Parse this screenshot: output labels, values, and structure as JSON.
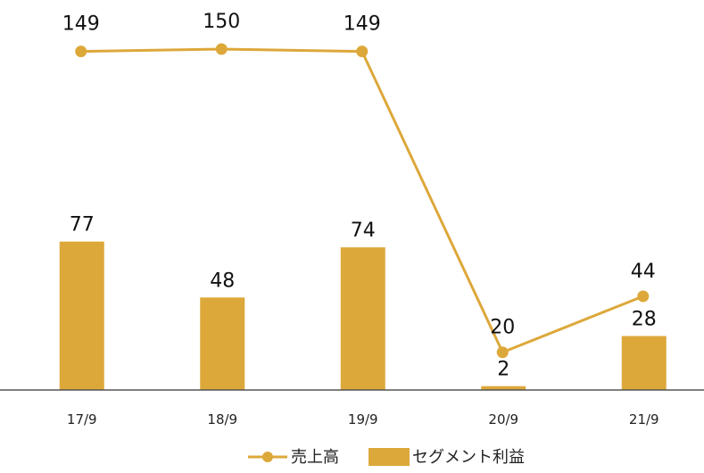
{
  "chart_data": {
    "type": "bar",
    "categories": [
      "17/9",
      "18/9",
      "19/9",
      "20/9",
      "21/9"
    ],
    "series": [
      {
        "name": "セグメント利益",
        "kind": "bar",
        "color": "#DDA83A",
        "values": [
          77,
          48,
          74,
          2,
          28
        ],
        "labels": [
          "77",
          "48",
          "74",
          "2",
          "28"
        ]
      },
      {
        "name": "売上高",
        "kind": "line",
        "color": "#DDA83A",
        "values": [
          149,
          150,
          149,
          20,
          44
        ],
        "labels": [
          "149",
          "150",
          "149",
          "20",
          "44"
        ]
      }
    ],
    "axis_color": "#555555",
    "legend_position": "bottom",
    "grid": false
  }
}
